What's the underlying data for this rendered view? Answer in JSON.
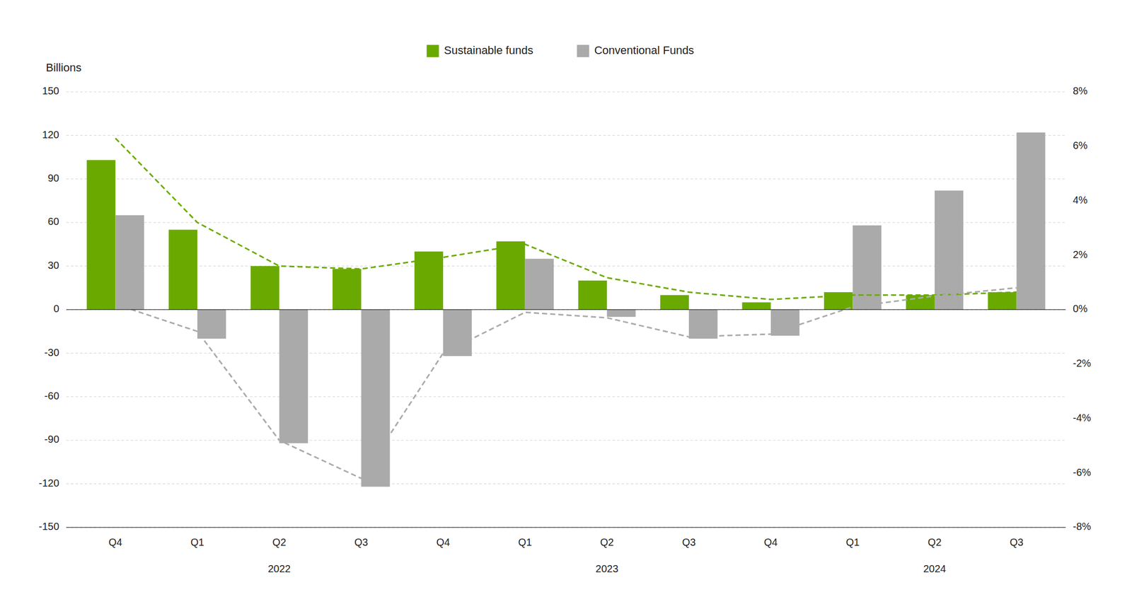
{
  "chart_data": {
    "type": "bar",
    "y_label": "Billions",
    "categories": [
      "Q4",
      "Q1",
      "Q2",
      "Q3",
      "Q4",
      "Q1",
      "Q2",
      "Q3",
      "Q4",
      "Q1",
      "Q2",
      "Q3"
    ],
    "series": [
      {
        "name": "Sustainable funds",
        "type": "bar",
        "color": "#6aaa00",
        "values": [
          103,
          55,
          30,
          28,
          40,
          47,
          20,
          10,
          5,
          12,
          10,
          12
        ]
      },
      {
        "name": "Conventional Funds",
        "type": "bar",
        "color": "#aaaaaa",
        "values": [
          65,
          -20,
          -92,
          -122,
          -32,
          35,
          -5,
          -20,
          -18,
          58,
          82,
          122
        ]
      },
      {
        "type": "line",
        "line_style": "dashed",
        "color": "#6aaa00",
        "values": [
          118,
          60,
          30,
          28,
          36,
          45,
          22,
          12,
          7,
          10,
          10,
          12
        ]
      },
      {
        "type": "line",
        "line_style": "dashed",
        "color": "#aaaaaa",
        "axis": "y2",
        "values": [
          0.2,
          -0.8,
          -4.8,
          -6.2,
          -1.6,
          -0.1,
          -0.3,
          -1.0,
          -0.9,
          0.1,
          0.5,
          0.8
        ]
      }
    ],
    "annotations": [
      {
        "text": "2022",
        "x": 2.0
      },
      {
        "text": "2023",
        "x": 6.0
      },
      {
        "text": "2024",
        "x": 10.0
      }
    ],
    "ylim": [
      -150,
      150
    ],
    "yticks": [
      -150,
      -120,
      -90,
      -60,
      -30,
      0,
      30,
      60,
      90,
      120,
      150
    ],
    "y2lim": [
      -8,
      8
    ],
    "y2ticks": [
      {
        "value": -8,
        "label": "-8%"
      },
      {
        "value": -6,
        "label": "-6%"
      },
      {
        "value": -4,
        "label": "-4%"
      },
      {
        "value": -2,
        "label": "-2%"
      },
      {
        "value": 0,
        "label": "0%"
      },
      {
        "value": 2,
        "label": "2%"
      },
      {
        "value": 4,
        "label": "4%"
      },
      {
        "value": 6,
        "label": "6%"
      },
      {
        "value": 8,
        "label": "8%"
      }
    ],
    "grid": true,
    "legend": "top"
  }
}
